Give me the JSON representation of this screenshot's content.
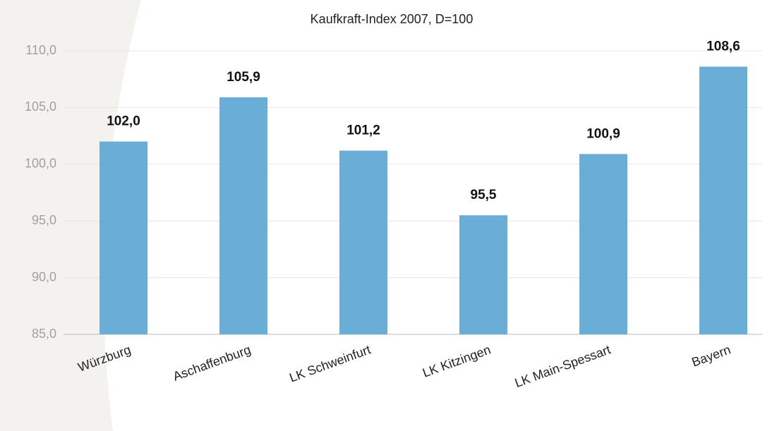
{
  "chart_data": {
    "type": "bar",
    "title": "Kaufkraft-Index 2007, D=100",
    "categories": [
      "Würzburg",
      "Aschaffenburg",
      "LK Schweinfurt",
      "LK Kitzingen",
      "LK Main-Spessart",
      "Bayern"
    ],
    "values": [
      102.0,
      105.9,
      101.2,
      95.5,
      100.9,
      108.6
    ],
    "value_labels": [
      "102,0",
      "105,9",
      "101,2",
      "95,5",
      "100,9",
      "108,6"
    ],
    "color": "#6aaed8",
    "ylim": [
      85,
      110
    ],
    "yticks": [
      {
        "value": 85,
        "label": "85,0"
      },
      {
        "value": 90,
        "label": "90,0"
      },
      {
        "value": 95,
        "label": "95,0"
      },
      {
        "value": 100,
        "label": "100,0"
      },
      {
        "value": 105,
        "label": "105,0"
      },
      {
        "value": 110,
        "label": "110,0"
      }
    ],
    "grid": true
  }
}
